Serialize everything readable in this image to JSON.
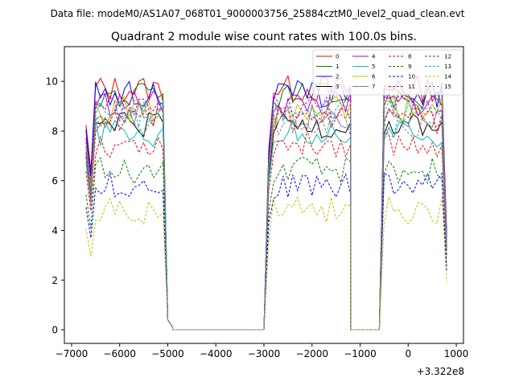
{
  "figure": {
    "suptitle": "Data file: modeM0/AS1A07_068T01_9000003756_25884cztM0_level2_quad_clean.evt",
    "title": "Quadrant 2 module wise count rates with 100.0s bins.",
    "offset_label": "+3.322e8"
  },
  "chart_data": {
    "type": "line",
    "title": "Quadrant 2 module wise count rates with 100.0s bins.",
    "xlabel": "",
    "ylabel": "",
    "xlim": [
      -7150,
      1150
    ],
    "ylim": [
      -0.55,
      11.4
    ],
    "x_offset": 332200000,
    "x_ticks": [
      -7000,
      -6000,
      -5000,
      -4000,
      -3000,
      -2000,
      -1000,
      0,
      1000
    ],
    "x_tick_labels": [
      "−7000",
      "−6000",
      "−5000",
      "−4000",
      "−3000",
      "−2000",
      "−1000",
      "0",
      "1000"
    ],
    "y_ticks": [
      0,
      2,
      4,
      6,
      8,
      10
    ],
    "y_tick_labels": [
      "0",
      "2",
      "4",
      "6",
      "8",
      "10"
    ],
    "grid": false,
    "legend_position": "top-right",
    "legend_columns": 4,
    "segments": [
      {
        "start": -6700,
        "end": -5100,
        "points": 17
      },
      {
        "start": -5000,
        "end": -4900,
        "points": 2
      },
      {
        "start": -4900,
        "end": -3000,
        "points": 20
      },
      {
        "start": -2900,
        "end": -1200,
        "points": 18
      },
      {
        "start": -1200,
        "end": -600,
        "points": 7
      },
      {
        "start": -500,
        "end": 800,
        "points": 14
      }
    ],
    "series": [
      {
        "name": "0",
        "color": "#ff0000",
        "dash": "solid",
        "level": 9.7
      },
      {
        "name": "1",
        "color": "#008000",
        "dash": "solid",
        "level": 9.4
      },
      {
        "name": "2",
        "color": "#0000ff",
        "dash": "solid",
        "level": 9.5
      },
      {
        "name": "3",
        "color": "#000000",
        "dash": "solid",
        "level": 8.2
      },
      {
        "name": "4",
        "color": "#bf00bf",
        "dash": "solid",
        "level": 9.1
      },
      {
        "name": "5",
        "color": "#00bfbf",
        "dash": "solid",
        "level": 7.9
      },
      {
        "name": "6",
        "color": "#bfbf00",
        "dash": "solid",
        "level": 8.9
      },
      {
        "name": "7",
        "color": "#808080",
        "dash": "solid",
        "level": 8.6
      },
      {
        "name": "8",
        "color": "#ff0000",
        "dash": "dashed",
        "level": 7.5
      },
      {
        "name": "9",
        "color": "#008000",
        "dash": "dashed",
        "level": 6.4
      },
      {
        "name": "10",
        "color": "#0000ff",
        "dash": "dashed",
        "level": 5.8
      },
      {
        "name": "11",
        "color": "#ff0000",
        "dash": "dashed",
        "level": 8.4
      },
      {
        "name": "12",
        "color": "#bf00bf",
        "dash": "dashed",
        "level": 8.9
      },
      {
        "name": "13",
        "color": "#00bfbf",
        "dash": "dashed",
        "level": 8.7
      },
      {
        "name": "14",
        "color": "#bfbf00",
        "dash": "dashed",
        "level": 4.8
      },
      {
        "name": "15",
        "color": "#808080",
        "dash": "dashed",
        "level": 8.3
      }
    ]
  }
}
